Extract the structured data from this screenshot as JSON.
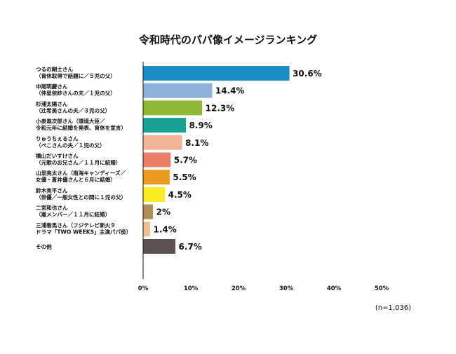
{
  "chart_data": {
    "type": "bar",
    "orientation": "horizontal",
    "title": "令和時代のパパ像イメージランキング",
    "categories": [
      [
        "つるの剛士さん",
        "（育休取得で話題に／５児の父）"
      ],
      [
        "中尾明慶さん",
        "（仲里依紗さんの夫／１児の父）"
      ],
      [
        "杉浦太陽さん",
        "（辻希美さんの夫／３児の父）"
      ],
      [
        "小泉進次郎さん（環境大臣／",
        "令和元年に結婚を発表、育休を宣言）"
      ],
      [
        "りゅうちぇるさん",
        "（ぺこさんの夫／１児の父）"
      ],
      [
        "横山だいすけさん",
        "（元歌のお兄さん／１１月に結婚）"
      ],
      [
        "山里亮太さん（南海キャンディーズ／",
        "女優・蒼井優さんと６月に結婚）"
      ],
      [
        "鈴木亮平さん",
        "（俳優／一般女性との間に１児の父）"
      ],
      [
        "二宮和也さん",
        "（嵐メンバー／１１月に結婚）"
      ],
      [
        "三浦春馬さん（フジテレビ新火９",
        "ドラマ「TWO WEEKS」主演パパ役）"
      ],
      [
        "その他"
      ]
    ],
    "values": [
      30.6,
      14.4,
      12.3,
      8.9,
      8.1,
      5.7,
      5.5,
      4.5,
      2,
      1.4,
      6.7
    ],
    "value_labels": [
      "30.6%",
      "14.4%",
      "12.3%",
      "8.9%",
      "8.1%",
      "5.7%",
      "5.5%",
      "4.5%",
      "2%",
      "1.4%",
      "6.7%"
    ],
    "colors": [
      "#1b8fc4",
      "#8fb0db",
      "#8cba35",
      "#1aa295",
      "#f2b598",
      "#ea7f66",
      "#eb9c1f",
      "#f7ed22",
      "#b08e58",
      "#f1c08e",
      "#5b5152"
    ],
    "xlim": [
      0,
      50
    ],
    "xticks": [
      "0%",
      "10%",
      "20%",
      "30%",
      "40%",
      "50%"
    ],
    "grid": false,
    "note": "(n=1,036)"
  }
}
